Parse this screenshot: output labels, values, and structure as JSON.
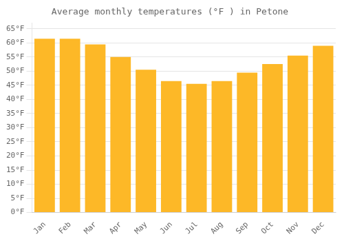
{
  "chart_data": {
    "type": "bar",
    "title": "Average monthly temperatures (°F ) in Petone",
    "categories": [
      "Jan",
      "Feb",
      "Mar",
      "Apr",
      "May",
      "Jun",
      "Jul",
      "Aug",
      "Sep",
      "Oct",
      "Nov",
      "Dec"
    ],
    "values": [
      61.5,
      61.5,
      59.5,
      55.0,
      50.5,
      46.5,
      45.5,
      46.5,
      49.5,
      52.5,
      55.5,
      59.0
    ],
    "color": "#FDB827",
    "ylim": [
      0,
      67
    ],
    "yticks": [
      {
        "value": 0,
        "label": "0°F"
      },
      {
        "value": 5,
        "label": "5°F"
      },
      {
        "value": 10,
        "label": "10°F"
      },
      {
        "value": 15,
        "label": "15°F"
      },
      {
        "value": 20,
        "label": "20°F"
      },
      {
        "value": 25,
        "label": "25°F"
      },
      {
        "value": 30,
        "label": "30°F"
      },
      {
        "value": 35,
        "label": "35°F"
      },
      {
        "value": 40,
        "label": "40°F"
      },
      {
        "value": 45,
        "label": "45°F"
      },
      {
        "value": 50,
        "label": "50°F"
      },
      {
        "value": 55,
        "label": "55°F"
      },
      {
        "value": 60,
        "label": "60°F"
      },
      {
        "value": 65,
        "label": "65°F"
      }
    ],
    "grid": true
  }
}
